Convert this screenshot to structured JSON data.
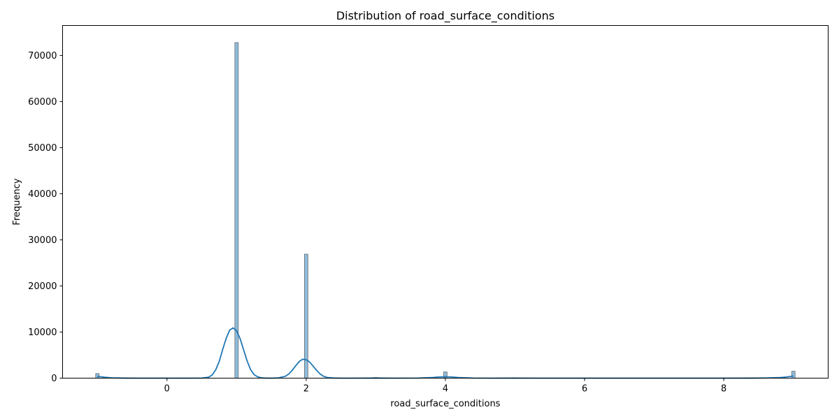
{
  "chart_data": {
    "type": "bar",
    "title": "Distribution of road_surface_conditions",
    "xlabel": "road_surface_conditions",
    "ylabel": "Frequency",
    "xlim": [
      -1.5,
      9.5
    ],
    "ylim": [
      0,
      76500
    ],
    "x_ticks": [
      0,
      2,
      4,
      6,
      8
    ],
    "y_ticks": [
      0,
      10000,
      20000,
      30000,
      40000,
      50000,
      60000,
      70000
    ],
    "grid": false,
    "legend": "none",
    "bar_color": "#1f77b4",
    "bar_alpha": 0.5,
    "kde_color": "#1f77b4",
    "bin_width": 0.05,
    "bars": [
      {
        "x": -1,
        "value": 1000
      },
      {
        "x": 1,
        "value": 72800
      },
      {
        "x": 2,
        "value": 26900
      },
      {
        "x": 3,
        "value": 150
      },
      {
        "x": 4,
        "value": 1350
      },
      {
        "x": 5,
        "value": 100
      },
      {
        "x": 9,
        "value": 1500
      }
    ],
    "kde": {
      "x": [
        -1.0,
        -0.95,
        -0.9,
        -0.8,
        -0.6,
        -0.4,
        -0.2,
        0.0,
        0.2,
        0.4,
        0.5,
        0.6,
        0.65,
        0.7,
        0.75,
        0.8,
        0.85,
        0.9,
        0.95,
        1.0,
        1.05,
        1.1,
        1.15,
        1.2,
        1.25,
        1.3,
        1.35,
        1.4,
        1.5,
        1.6,
        1.7,
        1.75,
        1.8,
        1.85,
        1.9,
        1.95,
        2.0,
        2.05,
        2.1,
        2.15,
        2.2,
        2.25,
        2.3,
        2.4,
        2.5,
        2.7,
        2.9,
        3.0,
        3.1,
        3.3,
        3.6,
        3.8,
        3.9,
        4.0,
        4.1,
        4.2,
        4.4,
        4.7,
        5.0,
        5.3,
        5.6,
        6.0,
        6.5,
        7.0,
        7.5,
        8.0,
        8.4,
        8.6,
        8.8,
        8.9,
        9.0
      ],
      "y": [
        350,
        300,
        200,
        80,
        10,
        0,
        0,
        0,
        0,
        0,
        20,
        200,
        700,
        1800,
        3600,
        6200,
        8600,
        10400,
        10900,
        10300,
        8600,
        6200,
        3800,
        1900,
        800,
        300,
        100,
        30,
        0,
        50,
        400,
        900,
        1700,
        2700,
        3600,
        4100,
        4000,
        3500,
        2600,
        1700,
        900,
        400,
        150,
        30,
        0,
        0,
        10,
        30,
        10,
        0,
        20,
        120,
        250,
        300,
        250,
        120,
        20,
        0,
        10,
        0,
        0,
        0,
        0,
        0,
        0,
        0,
        10,
        40,
        120,
        250,
        450
      ]
    }
  }
}
